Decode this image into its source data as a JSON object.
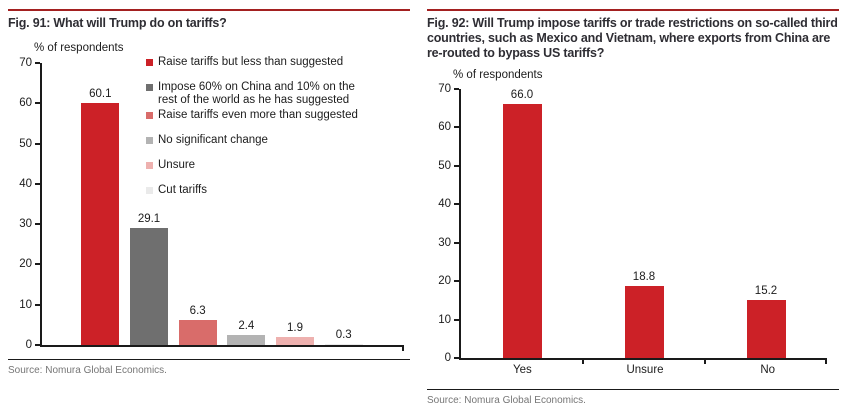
{
  "styles": {
    "rule_red": "#a32020",
    "bar_red": "#cc2127",
    "axis_color": "#1a1a1a",
    "title_color": "#2e2d33",
    "source_gray": "#767676"
  },
  "chart_data": [
    {
      "type": "bar",
      "fig_label": "Fig. 91: What will Trump do on tariffs?",
      "ylabel": "% of respondents",
      "xlabel": "",
      "ylim": [
        0,
        70
      ],
      "yticks": [
        0,
        10,
        20,
        30,
        40,
        50,
        60,
        70
      ],
      "grid": false,
      "categories": [
        "Raise tariffs but less than suggested",
        "Impose 60% on China and 10% on the rest of the world as he has suggested",
        "Raise tariffs even more than suggested",
        "No significant change",
        "Unsure",
        "Cut tariffs"
      ],
      "values": [
        60.1,
        29.1,
        6.3,
        2.4,
        1.9,
        0.3
      ],
      "value_labels": [
        "60.1",
        "29.1",
        "6.3",
        "2.4",
        "1.9",
        "0.3"
      ],
      "bar_colors": [
        "#cc2127",
        "#6f6f6f",
        "#d96c6a",
        "#b3b3b3",
        "#eeb1af",
        "#eaeaea"
      ],
      "x_tick_labels_shown": false,
      "x_slot_ticks": false,
      "x_end_tick": true,
      "legend": {
        "position": "upper right",
        "entries": [
          {
            "color_index": 0,
            "lines": [
              "Raise tariffs but less than suggested"
            ]
          },
          {
            "color_index": 1,
            "lines": [
              "Impose 60% on China and 10% on the",
              "rest of the world as he has suggested"
            ]
          },
          {
            "color_index": 2,
            "lines": [
              "Raise tariffs even more than suggested"
            ]
          },
          {
            "color_index": 3,
            "lines": [
              "No significant change"
            ]
          },
          {
            "color_index": 4,
            "lines": [
              "Unsure"
            ]
          },
          {
            "color_index": 5,
            "lines": [
              "Cut tariffs"
            ]
          }
        ]
      },
      "source": "Source: Nomura Global Economics."
    },
    {
      "type": "bar",
      "fig_label": "Fig. 92: Will Trump impose tariffs or trade restrictions on so-called third countries, such as Mexico and Vietnam, where exports from China are re-routed to bypass US tariffs?",
      "ylabel": "% of respondents",
      "xlabel": "",
      "ylim": [
        0,
        70
      ],
      "yticks": [
        0,
        10,
        20,
        30,
        40,
        50,
        60,
        70
      ],
      "grid": false,
      "categories": [
        "Yes",
        "Unsure",
        "No"
      ],
      "values": [
        66.0,
        18.8,
        15.2
      ],
      "value_labels": [
        "66.0",
        "18.8",
        "15.2"
      ],
      "bar_colors": [
        "#cc2127",
        "#cc2127",
        "#cc2127"
      ],
      "x_tick_labels_shown": true,
      "x_slot_ticks": true,
      "x_end_tick": true,
      "legend": null,
      "source": "Source: Nomura Global Economics."
    }
  ]
}
